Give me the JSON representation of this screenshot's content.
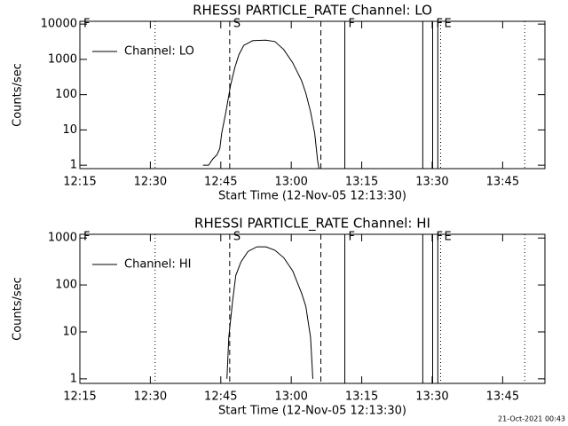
{
  "chart_data": [
    {
      "type": "line",
      "title": "RHESSI PARTICLE_RATE Channel: LO",
      "xlabel": "Start Time (12-Nov-05 12:13:30)",
      "ylabel": "Counts/sec",
      "log_y": true,
      "legend": "upper left",
      "xlim": [
        735,
        834
      ],
      "ylim": [
        0.8,
        12000
      ],
      "xticks": [
        {
          "value": 735,
          "label": "12:15"
        },
        {
          "value": 750,
          "label": "12:30"
        },
        {
          "value": 765,
          "label": "12:45"
        },
        {
          "value": 780,
          "label": "13:00"
        },
        {
          "value": 795,
          "label": "13:15"
        },
        {
          "value": 810,
          "label": "13:30"
        },
        {
          "value": 825,
          "label": "13:45"
        }
      ],
      "yticks": [
        1,
        10,
        100,
        1000,
        10000
      ],
      "series": [
        {
          "name": "Channel: LO",
          "color": "#000000",
          "x": [
            761.2,
            762.4,
            763.3,
            764.2,
            764.8,
            765.2,
            766.1,
            767.1,
            768.0,
            768.9,
            769.9,
            771.8,
            774.6,
            776.5,
            778.4,
            780.3,
            782.2,
            783.1,
            784.1,
            785.0,
            785.6,
            785.9
          ],
          "values": [
            1,
            1,
            1.5,
            2,
            3,
            8,
            33,
            190,
            600,
            1400,
            2500,
            3400,
            3500,
            3200,
            1900,
            800,
            250,
            110,
            33,
            8,
            1.4,
            0.8
          ]
        }
      ],
      "markers": [
        {
          "x": 735,
          "style": "solid",
          "label": "F"
        },
        {
          "x": 751.0,
          "style": "dotted"
        },
        {
          "x": 766.9,
          "style": "dashed",
          "label": "S"
        },
        {
          "x": 786.3,
          "style": "dashed"
        },
        {
          "x": 791.4,
          "style": "solid",
          "label": "F"
        },
        {
          "x": 808.0,
          "style": "solid"
        },
        {
          "x": 810.1,
          "style": "solid",
          "label": "F"
        },
        {
          "x": 811.2,
          "style": "solid"
        },
        {
          "x": 811.8,
          "style": "dotted",
          "label": "E"
        },
        {
          "x": 829.7,
          "style": "dotted"
        }
      ]
    },
    {
      "type": "line",
      "title": "RHESSI PARTICLE_RATE Channel: HI",
      "xlabel": "Start Time (12-Nov-05 12:13:30)",
      "ylabel": "Counts/sec",
      "log_y": true,
      "legend": "upper left",
      "xlim": [
        735,
        834
      ],
      "ylim": [
        0.8,
        1200
      ],
      "xticks": [
        {
          "value": 735,
          "label": "12:15"
        },
        {
          "value": 750,
          "label": "12:30"
        },
        {
          "value": 765,
          "label": "12:45"
        },
        {
          "value": 780,
          "label": "13:00"
        },
        {
          "value": 795,
          "label": "13:15"
        },
        {
          "value": 810,
          "label": "13:30"
        },
        {
          "value": 825,
          "label": "13:45"
        }
      ],
      "yticks": [
        1,
        10,
        100,
        1000
      ],
      "series": [
        {
          "name": "Channel: HI",
          "color": "#000000",
          "x": [
            766.3,
            766.7,
            767.5,
            768.2,
            769.3,
            770.8,
            772.7,
            774.6,
            776.5,
            778.4,
            780.3,
            782.2,
            783.1,
            784.1,
            784.6
          ],
          "values": [
            1,
            7.7,
            44,
            160,
            310,
            520,
            650,
            650,
            550,
            380,
            200,
            67,
            35,
            7.7,
            1
          ]
        }
      ],
      "markers": [
        {
          "x": 735,
          "style": "solid",
          "label": "F"
        },
        {
          "x": 751.0,
          "style": "dotted"
        },
        {
          "x": 766.9,
          "style": "dashed",
          "label": "S"
        },
        {
          "x": 786.3,
          "style": "dashed"
        },
        {
          "x": 791.4,
          "style": "solid",
          "label": "F"
        },
        {
          "x": 808.0,
          "style": "solid"
        },
        {
          "x": 810.1,
          "style": "solid",
          "label": "F"
        },
        {
          "x": 811.2,
          "style": "solid"
        },
        {
          "x": 811.8,
          "style": "dotted",
          "label": "E"
        },
        {
          "x": 829.7,
          "style": "dotted"
        }
      ]
    }
  ],
  "footer": "21-Oct-2021 00:43"
}
